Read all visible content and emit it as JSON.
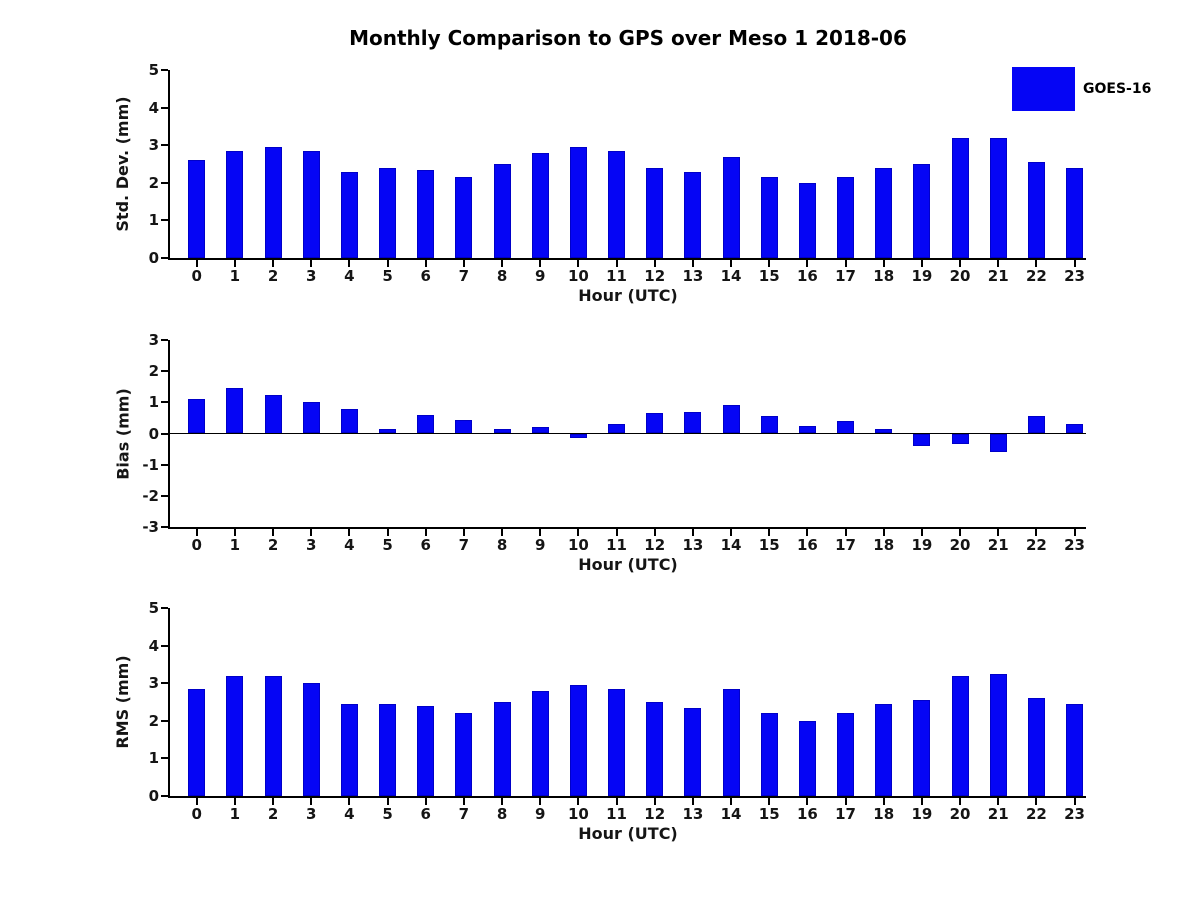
{
  "title": "Monthly Comparison to GPS over Meso 1 2018-06",
  "legend": {
    "label": "GOES-16",
    "color": "#0505F5",
    "position": "top-right"
  },
  "colors": {
    "bar_fill": "#0505F5",
    "bar_edge": "#0000C8",
    "axis": "#000000",
    "text": "#151515",
    "background": "#FFFFFF"
  },
  "chart_data": [
    {
      "type": "bar",
      "ylabel": "Std. Dev. (mm)",
      "xlabel": "Hour (UTC)",
      "ylim": [
        0,
        5
      ],
      "yticks": [
        0,
        1,
        2,
        3,
        4,
        5
      ],
      "grid": false,
      "categories": [
        "0",
        "1",
        "2",
        "3",
        "4",
        "5",
        "6",
        "7",
        "8",
        "9",
        "10",
        "11",
        "12",
        "13",
        "14",
        "15",
        "16",
        "17",
        "18",
        "19",
        "20",
        "21",
        "22",
        "23"
      ],
      "series": [
        {
          "name": "GOES-16",
          "values": [
            2.6,
            2.85,
            2.95,
            2.85,
            2.3,
            2.4,
            2.35,
            2.15,
            2.5,
            2.8,
            2.95,
            2.85,
            2.4,
            2.3,
            2.7,
            2.15,
            2.0,
            2.15,
            2.4,
            2.5,
            3.2,
            3.2,
            2.55,
            2.4
          ]
        }
      ]
    },
    {
      "type": "bar",
      "ylabel": "Bias (mm)",
      "xlabel": "Hour (UTC)",
      "ylim": [
        -3,
        3
      ],
      "yticks": [
        -3,
        -2,
        -1,
        0,
        1,
        2,
        3
      ],
      "grid": false,
      "categories": [
        "0",
        "1",
        "2",
        "3",
        "4",
        "5",
        "6",
        "7",
        "8",
        "9",
        "10",
        "11",
        "12",
        "13",
        "14",
        "15",
        "16",
        "17",
        "18",
        "19",
        "20",
        "21",
        "22",
        "23"
      ],
      "series": [
        {
          "name": "GOES-16",
          "values": [
            1.1,
            1.45,
            1.25,
            1.0,
            0.8,
            0.15,
            0.6,
            0.45,
            0.15,
            0.2,
            -0.15,
            0.3,
            0.65,
            0.7,
            0.9,
            0.55,
            0.25,
            0.4,
            0.15,
            -0.4,
            -0.35,
            -0.6,
            0.55,
            0.3
          ]
        }
      ]
    },
    {
      "type": "bar",
      "ylabel": "RMS (mm)",
      "xlabel": "Hour (UTC)",
      "ylim": [
        0,
        5
      ],
      "yticks": [
        0,
        1,
        2,
        3,
        4,
        5
      ],
      "grid": false,
      "categories": [
        "0",
        "1",
        "2",
        "3",
        "4",
        "5",
        "6",
        "7",
        "8",
        "9",
        "10",
        "11",
        "12",
        "13",
        "14",
        "15",
        "16",
        "17",
        "18",
        "19",
        "20",
        "21",
        "22",
        "23"
      ],
      "series": [
        {
          "name": "GOES-16",
          "values": [
            2.85,
            3.2,
            3.2,
            3.0,
            2.45,
            2.45,
            2.4,
            2.2,
            2.5,
            2.8,
            2.95,
            2.85,
            2.5,
            2.35,
            2.85,
            2.2,
            2.0,
            2.2,
            2.45,
            2.55,
            3.2,
            3.25,
            2.6,
            2.45
          ]
        }
      ]
    }
  ]
}
